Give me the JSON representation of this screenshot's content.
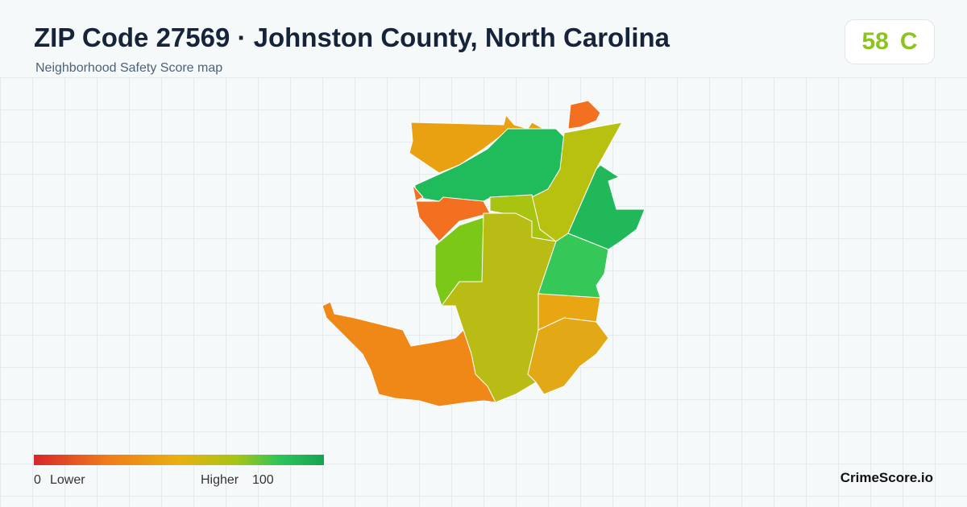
{
  "header": {
    "title": "ZIP Code 27569 · Johnston County, North Carolina",
    "subtitle": "Neighborhood Safety Score map"
  },
  "score": {
    "value": "58",
    "grade": "C"
  },
  "legend": {
    "min": "0",
    "min_label": "Lower",
    "max_label": "Higher",
    "max": "100"
  },
  "brand": "CrimeScore.io"
}
